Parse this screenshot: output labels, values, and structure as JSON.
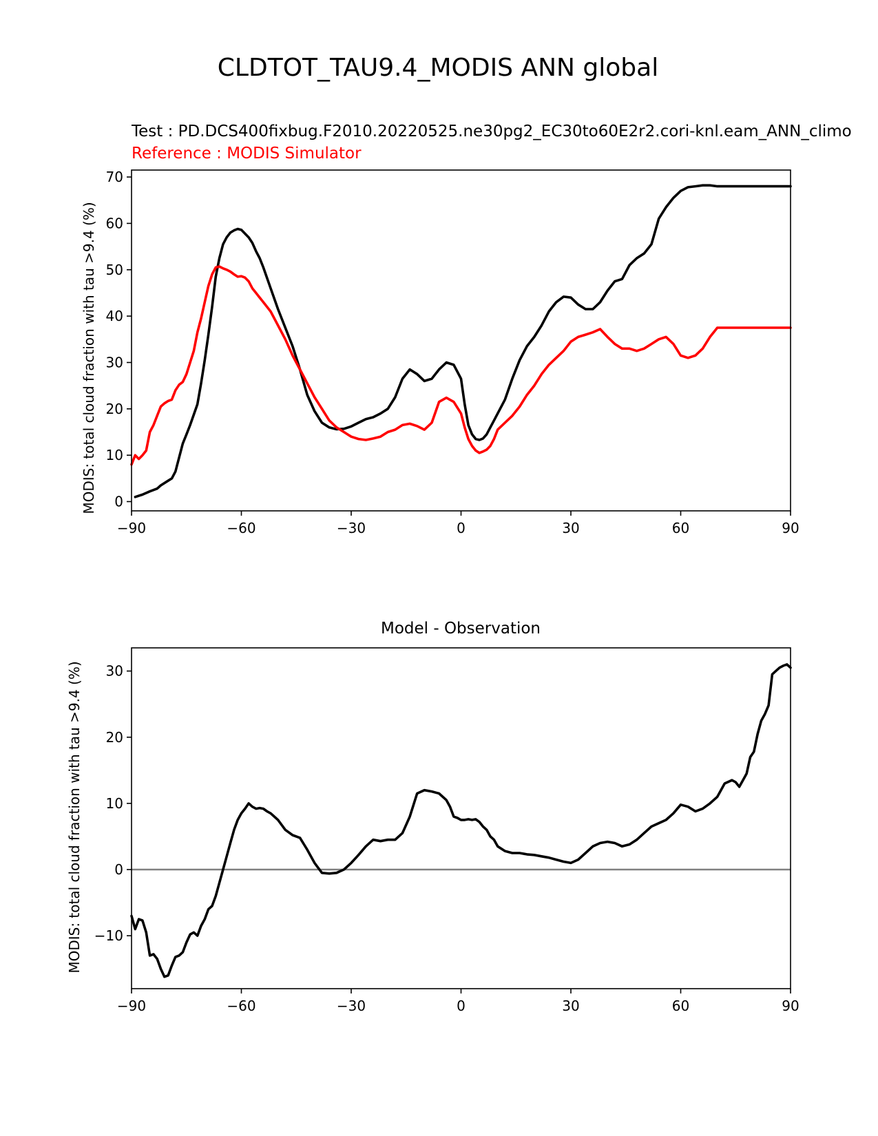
{
  "suptitle": "CLDTOT_TAU9.4_MODIS ANN global",
  "chart_data": [
    {
      "type": "line",
      "test_label": "Test : PD.DCS400fixbug.F2010.20220525.ne30pg2_EC30to60E2r2.cori-knl.eam_ANN_climo",
      "reference_label": "Reference : MODIS Simulator",
      "ylabel": "MODIS: total cloud fraction with tau >9.4 (%)",
      "xlim": [
        -90,
        90
      ],
      "ylim": [
        -2,
        71.5
      ],
      "xticks": [
        -90,
        -60,
        -30,
        0,
        30,
        60,
        90
      ],
      "xtick_labels": [
        "−90",
        "−60",
        "−30",
        "0",
        "30",
        "60",
        "90"
      ],
      "yticks": [
        0,
        10,
        20,
        30,
        40,
        50,
        60,
        70
      ],
      "ytick_labels": [
        "0",
        "10",
        "20",
        "30",
        "40",
        "50",
        "60",
        "70"
      ],
      "grid": false,
      "series": [
        {
          "color": "#000000",
          "x": [
            -89,
            -87,
            -85,
            -83,
            -82,
            -80,
            -79,
            -78,
            -77,
            -76,
            -75,
            -74,
            -72,
            -71,
            -70,
            -69,
            -68,
            -67,
            -66,
            -65,
            -64,
            -63,
            -62,
            -61,
            -60,
            -58,
            -57,
            -56,
            -55,
            -54,
            -52,
            -50,
            -48,
            -46,
            -44,
            -42,
            -40,
            -38,
            -36,
            -34,
            -32,
            -30,
            -28,
            -26,
            -24,
            -22,
            -20,
            -18,
            -16,
            -14,
            -12,
            -10,
            -8,
            -6,
            -4,
            -2,
            0,
            1,
            2,
            3,
            4,
            5,
            6,
            7,
            8,
            9,
            10,
            12,
            14,
            16,
            18,
            20,
            22,
            24,
            26,
            28,
            30,
            32,
            34,
            36,
            38,
            40,
            42,
            44,
            46,
            48,
            50,
            52,
            54,
            56,
            58,
            60,
            62,
            64,
            66,
            68,
            70,
            72,
            73,
            74,
            75,
            76,
            77,
            78,
            79,
            80,
            81,
            82,
            83,
            84,
            85,
            86,
            87,
            88,
            89,
            90
          ],
          "values": [
            1.0,
            1.5,
            2.2,
            2.8,
            3.5,
            4.5,
            5.0,
            6.5,
            9.5,
            12.5,
            14.5,
            16.5,
            21.0,
            25.5,
            30.5,
            36.0,
            42.0,
            48.5,
            52.5,
            55.5,
            57.0,
            58.0,
            58.5,
            58.8,
            58.6,
            57.0,
            55.8,
            54.0,
            52.5,
            50.5,
            46.0,
            41.5,
            37.5,
            33.5,
            28.5,
            23.0,
            19.5,
            17.0,
            16.0,
            15.6,
            15.7,
            16.2,
            17.0,
            17.8,
            18.2,
            19.0,
            20.0,
            22.5,
            26.5,
            28.5,
            27.5,
            26.0,
            26.5,
            28.5,
            30.0,
            29.5,
            26.5,
            21.0,
            16.5,
            14.5,
            13.5,
            13.3,
            13.6,
            14.5,
            16.0,
            17.5,
            19.0,
            22.0,
            26.5,
            30.5,
            33.5,
            35.5,
            38.0,
            41.0,
            43.0,
            44.2,
            44.0,
            42.5,
            41.5,
            41.5,
            43.0,
            45.5,
            47.5,
            48.0,
            51.0,
            52.5,
            53.5,
            55.5,
            61.0,
            63.5,
            65.5,
            67.0,
            67.8,
            68.0,
            68.2,
            68.2,
            68.0,
            68.0,
            68.0,
            68.0,
            68.0,
            68.0,
            68.0,
            68.0,
            68.0,
            68.0,
            68.0,
            68.0,
            68.0,
            68.0,
            68.0,
            68.0,
            68.0,
            68.0,
            68.0,
            68.0
          ]
        },
        {
          "color": "#ff0000",
          "x": [
            -90,
            -89,
            -88,
            -87,
            -86,
            -85,
            -84,
            -83,
            -82,
            -81,
            -80,
            -79,
            -78,
            -77,
            -76,
            -75,
            -74,
            -73,
            -72,
            -71,
            -70,
            -69,
            -68,
            -67,
            -66,
            -65,
            -64,
            -63,
            -62,
            -61,
            -60,
            -59,
            -58,
            -57,
            -56,
            -55,
            -54,
            -52,
            -50,
            -48,
            -46,
            -44,
            -42,
            -40,
            -38,
            -36,
            -34,
            -32,
            -30,
            -28,
            -26,
            -24,
            -22,
            -20,
            -18,
            -16,
            -14,
            -12,
            -10,
            -8,
            -6,
            -4,
            -2,
            0,
            1,
            2,
            3,
            4,
            5,
            6,
            7,
            8,
            9,
            10,
            12,
            14,
            16,
            18,
            20,
            22,
            24,
            26,
            28,
            30,
            32,
            34,
            36,
            38,
            40,
            42,
            44,
            46,
            48,
            50,
            52,
            54,
            56,
            58,
            60,
            62,
            64,
            66,
            68,
            70,
            72,
            74,
            76,
            78,
            80,
            82,
            84,
            86,
            88,
            90
          ],
          "values": [
            8.0,
            10.0,
            9.2,
            10.0,
            11.0,
            15.0,
            16.5,
            18.5,
            20.5,
            21.2,
            21.7,
            22.0,
            24.0,
            25.2,
            25.8,
            27.5,
            30.0,
            32.5,
            36.5,
            39.5,
            43.0,
            46.5,
            49.0,
            50.5,
            50.7,
            50.3,
            50.0,
            49.6,
            49.0,
            48.5,
            48.6,
            48.3,
            47.5,
            46.0,
            45.0,
            44.0,
            43.0,
            41.0,
            38.0,
            35.0,
            31.5,
            28.5,
            25.5,
            22.5,
            20.0,
            17.5,
            16.0,
            15.0,
            14.0,
            13.5,
            13.3,
            13.6,
            14.0,
            15.0,
            15.5,
            16.5,
            16.8,
            16.3,
            15.5,
            17.0,
            21.5,
            22.4,
            21.5,
            19.0,
            16.0,
            13.5,
            12.0,
            11.0,
            10.5,
            10.8,
            11.2,
            12.0,
            13.5,
            15.5,
            17.0,
            18.5,
            20.5,
            23.0,
            25.0,
            27.5,
            29.5,
            31.0,
            32.5,
            34.5,
            35.5,
            36.0,
            36.5,
            37.2,
            35.5,
            34.0,
            33.0,
            33.0,
            32.5,
            33.0,
            34.0,
            35.0,
            35.5,
            34.0,
            31.5,
            31.0,
            31.5,
            33.0,
            35.5,
            37.5,
            37.5,
            37.5,
            37.5,
            37.5,
            37.5,
            37.5,
            37.5,
            37.5,
            37.5,
            37.5
          ]
        }
      ]
    },
    {
      "type": "line",
      "title": "Model - Observation",
      "ylabel": "MODIS: total cloud fraction with tau >9.4 (%)",
      "xlim": [
        -90,
        90
      ],
      "ylim": [
        -18,
        33.5
      ],
      "xticks": [
        -90,
        -60,
        -30,
        0,
        30,
        60,
        90
      ],
      "xtick_labels": [
        "−90",
        "−60",
        "−30",
        "0",
        "30",
        "60",
        "90"
      ],
      "yticks": [
        -10,
        0,
        10,
        20,
        30
      ],
      "ytick_labels": [
        "−10",
        "0",
        "10",
        "20",
        "30"
      ],
      "zero_line_color": "#808080",
      "grid": false,
      "series": [
        {
          "color": "#000000",
          "x": [
            -90,
            -89,
            -88,
            -87,
            -86,
            -85,
            -84,
            -83,
            -82,
            -81,
            -80,
            -79,
            -78,
            -77,
            -76,
            -75,
            -74,
            -73,
            -72,
            -71,
            -70,
            -69,
            -68,
            -67,
            -66,
            -65,
            -64,
            -63,
            -62,
            -61,
            -60,
            -59,
            -58,
            -57,
            -56,
            -55,
            -54,
            -53,
            -52,
            -51,
            -50,
            -48,
            -46,
            -44,
            -42,
            -40,
            -38,
            -36,
            -34,
            -32,
            -30,
            -28,
            -26,
            -24,
            -22,
            -20,
            -18,
            -16,
            -14,
            -12,
            -10,
            -8,
            -6,
            -4,
            -3,
            -2,
            -1,
            0,
            1,
            2,
            3,
            4,
            5,
            6,
            7,
            8,
            9,
            10,
            12,
            14,
            16,
            18,
            20,
            22,
            24,
            26,
            28,
            30,
            32,
            34,
            36,
            38,
            40,
            42,
            44,
            46,
            48,
            50,
            52,
            54,
            56,
            58,
            60,
            62,
            64,
            66,
            68,
            70,
            72,
            74,
            75,
            76,
            77,
            78,
            79,
            80,
            81,
            82,
            83,
            84,
            85,
            86,
            87,
            88,
            89,
            90
          ],
          "values": [
            -7.0,
            -9.0,
            -7.5,
            -7.7,
            -9.5,
            -13.0,
            -12.8,
            -13.5,
            -15.0,
            -16.2,
            -16.0,
            -14.5,
            -13.2,
            -13.0,
            -12.5,
            -11.0,
            -9.8,
            -9.5,
            -10.0,
            -8.5,
            -7.5,
            -6.0,
            -5.5,
            -4.0,
            -2.0,
            0.0,
            2.0,
            4.0,
            6.0,
            7.5,
            8.5,
            9.2,
            10.0,
            9.5,
            9.2,
            9.3,
            9.2,
            8.8,
            8.5,
            8.0,
            7.5,
            6.0,
            5.2,
            4.8,
            3.0,
            1.0,
            -0.5,
            -0.6,
            -0.5,
            0.0,
            1.0,
            2.2,
            3.5,
            4.5,
            4.3,
            4.5,
            4.5,
            5.5,
            8.0,
            11.5,
            12.0,
            11.8,
            11.5,
            10.5,
            9.5,
            8.0,
            7.8,
            7.5,
            7.5,
            7.6,
            7.5,
            7.6,
            7.2,
            6.5,
            6.0,
            5.0,
            4.5,
            3.5,
            2.8,
            2.5,
            2.5,
            2.3,
            2.2,
            2.0,
            1.8,
            1.5,
            1.2,
            1.0,
            1.5,
            2.5,
            3.5,
            4.0,
            4.2,
            4.0,
            3.5,
            3.8,
            4.5,
            5.5,
            6.5,
            7.0,
            7.5,
            8.5,
            9.8,
            9.5,
            8.8,
            9.2,
            10.0,
            11.0,
            13.0,
            13.5,
            13.2,
            12.5,
            13.5,
            14.5,
            17.0,
            17.8,
            20.5,
            22.5,
            23.5,
            24.8,
            29.5,
            30.0,
            30.5,
            30.8,
            31.0,
            30.5
          ]
        }
      ]
    }
  ]
}
